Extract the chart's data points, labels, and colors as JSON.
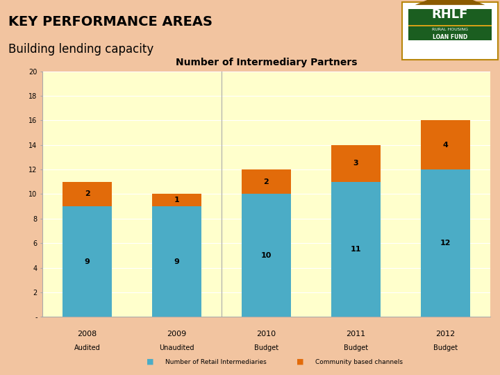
{
  "title": "Number of Intermediary Partners",
  "header_title": "KEY PERFORMANCE AREAS",
  "header_subtitle": "Building lending capacity",
  "years": [
    "2008",
    "2009",
    "2010",
    "2011",
    "2012"
  ],
  "subtitles": [
    "Audited",
    "Unaudited",
    "Budget",
    "Budget",
    "Budget"
  ],
  "retail": [
    9,
    9,
    10,
    11,
    12
  ],
  "community": [
    2,
    1,
    2,
    3,
    4
  ],
  "retail_color": "#4BACC6",
  "community_color": "#E26B0A",
  "bar_width": 0.55,
  "ylim": [
    0,
    20
  ],
  "yticks": [
    0,
    2,
    4,
    6,
    8,
    10,
    12,
    14,
    16,
    18,
    20
  ],
  "ytick_labels": [
    "-",
    "2",
    "4",
    "6",
    "8",
    "10",
    "12",
    "14",
    "16",
    "18",
    "20"
  ],
  "chart_bg": "#FFFFCC",
  "outer_bg": "#F2C4A0",
  "legend_retail": "Number of Retail Intermediaries",
  "legend_community": "Community based channels",
  "title_fontsize": 10,
  "label_fontsize": 8,
  "tick_fontsize": 7,
  "divider_after": [
    2
  ],
  "header_title_fontsize": 14,
  "header_subtitle_fontsize": 12,
  "logo_bg": "#FFFFFF",
  "logo_green": "#1B5E20",
  "logo_triangle": "#8B5A00",
  "logo_border": "#B8860B"
}
